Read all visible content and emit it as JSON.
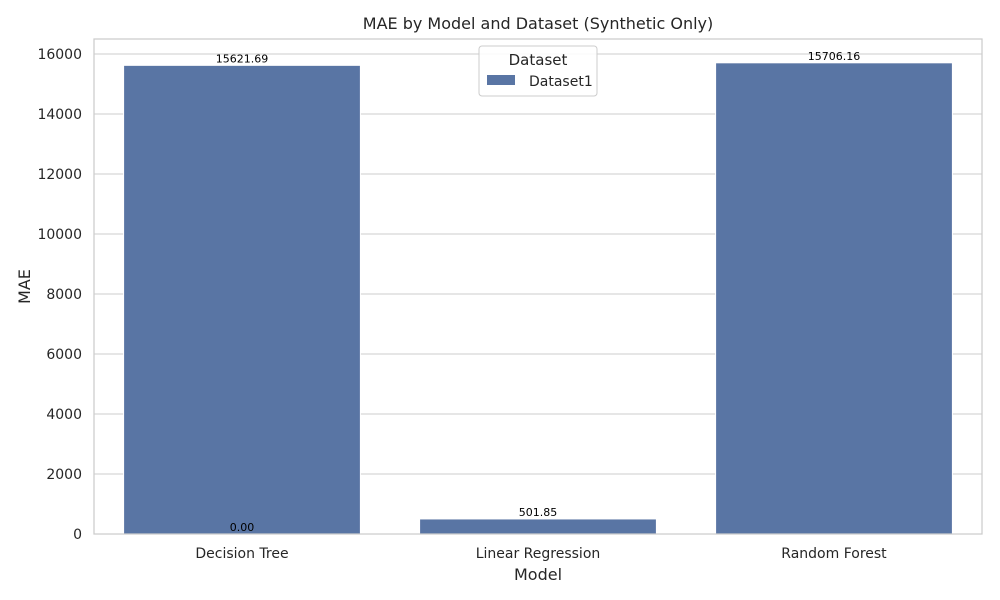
{
  "chart_data": {
    "type": "bar",
    "title": "MAE by Model and Dataset (Synthetic Only)",
    "xlabel": "Model",
    "ylabel": "MAE",
    "categories": [
      "Decision Tree",
      "Linear Regression",
      "Random Forest"
    ],
    "series": [
      {
        "name": "Dataset1",
        "values": [
          15621.69,
          501.85,
          15706.16
        ],
        "color": "#5975a4"
      }
    ],
    "bar_labels": [
      "15621.69",
      "501.85",
      "15706.16"
    ],
    "extra_annotations": [
      {
        "category": "Decision Tree",
        "value": 0,
        "text": "0.00"
      }
    ],
    "ylim": [
      0,
      16500
    ],
    "yticks": [
      0,
      2000,
      4000,
      6000,
      8000,
      10000,
      12000,
      14000,
      16000
    ],
    "grid": true,
    "legend": {
      "title": "Dataset",
      "placement": "top-center"
    }
  }
}
